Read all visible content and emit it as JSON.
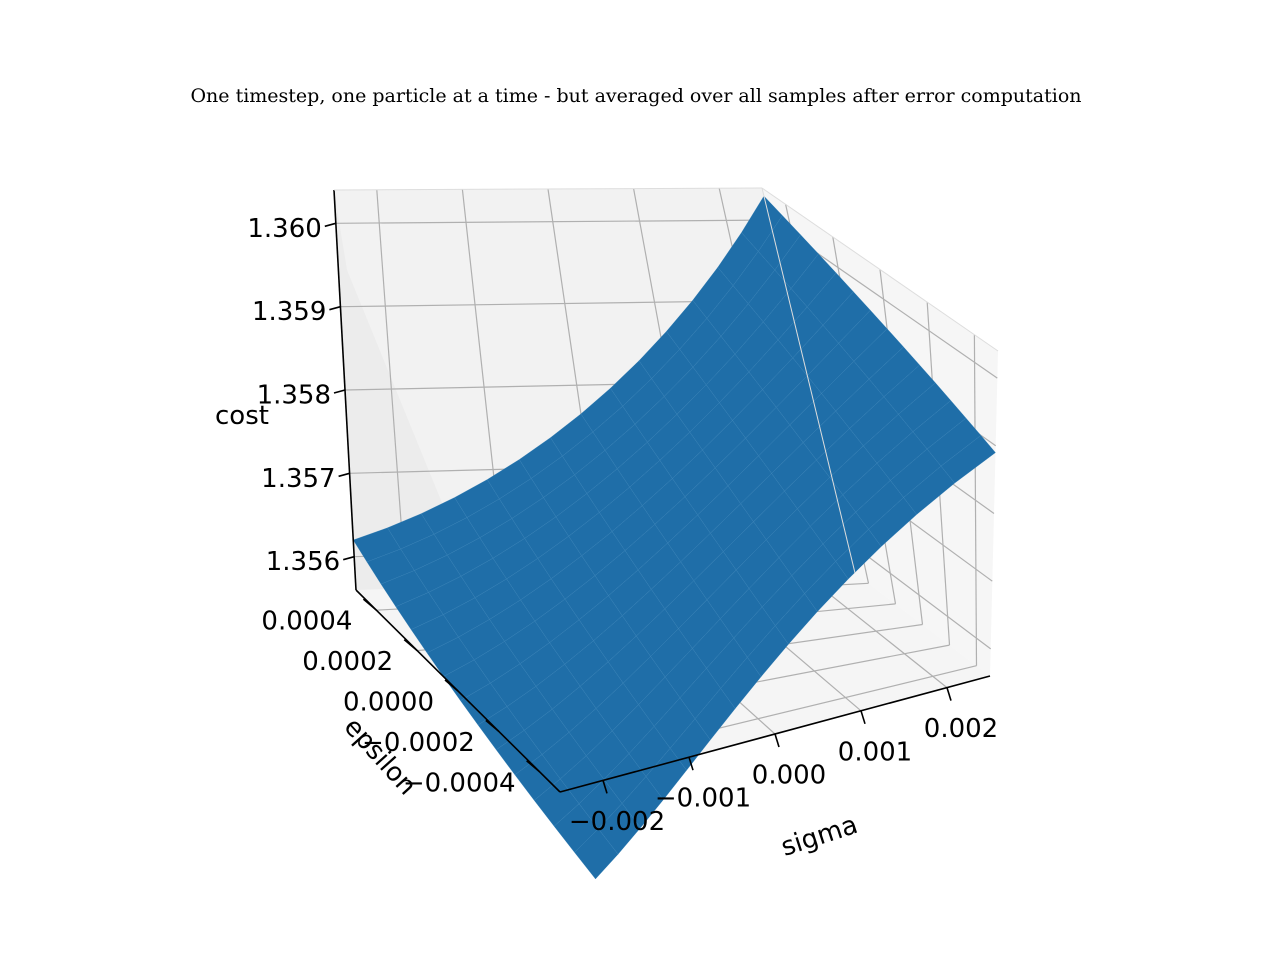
{
  "chart_data": {
    "type": "surface",
    "title": "One timestep, one particle at a time - but averaged over all samples after error computation",
    "xlabel": "sigma",
    "ylabel": "epsilon",
    "zlabel": "cost",
    "x_ticks": [
      "−0.002",
      "−0.001",
      "0.000",
      "0.001",
      "0.002"
    ],
    "y_ticks": [
      "−0.0004",
      "−0.0002",
      "0.0000",
      "0.0002",
      "0.0004"
    ],
    "z_ticks": [
      "1.356",
      "1.357",
      "1.358",
      "1.359",
      "1.360"
    ],
    "x_tick_values": [
      -0.002,
      -0.001,
      0.0,
      0.001,
      0.002
    ],
    "y_tick_values": [
      -0.0004,
      -0.0002,
      0.0,
      0.0002,
      0.0004
    ],
    "z_tick_values": [
      1.356,
      1.357,
      1.358,
      1.359,
      1.36
    ],
    "xlim": [
      -0.0025,
      0.0025
    ],
    "ylim": [
      -0.0005,
      0.0005
    ],
    "zlim": [
      1.3556,
      1.3604
    ],
    "surface": {
      "x_range": [
        -0.0025,
        0.0025
      ],
      "y_range": [
        -0.0005,
        0.0005
      ],
      "corners": {
        "xmin_ymin": 1.3548,
        "xmax_ymin": 1.3589,
        "xmin_ymax": 1.3562,
        "xmax_ymax": 1.3603
      },
      "curvature_in_x": 0.0006,
      "color": "#1f6ea8",
      "edge_color": "#3b86bb"
    },
    "pane_color": "#f2f2f2",
    "grid_color": "#b0b0b0",
    "grid": true
  }
}
